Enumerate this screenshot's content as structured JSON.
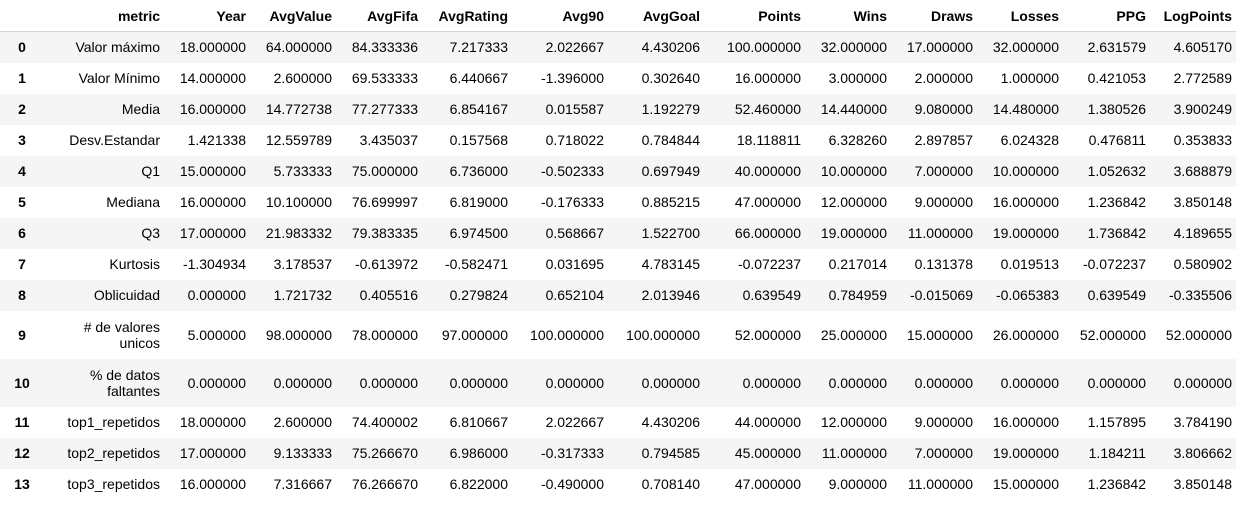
{
  "table": {
    "index_header": "",
    "columns": [
      "metric",
      "Year",
      "AvgValue",
      "AvgFifa",
      "AvgRating",
      "Avg90",
      "AvgGoal",
      "Points",
      "Wins",
      "Draws",
      "Losses",
      "PPG",
      "LogPoints"
    ],
    "rows": [
      {
        "index": "0",
        "metric": "Valor máximo",
        "values": [
          "18.000000",
          "64.000000",
          "84.333336",
          "7.217333",
          "2.022667",
          "4.430206",
          "100.000000",
          "32.000000",
          "17.000000",
          "32.000000",
          "2.631579",
          "4.605170"
        ]
      },
      {
        "index": "1",
        "metric": "Valor Mínimo",
        "values": [
          "14.000000",
          "2.600000",
          "69.533333",
          "6.440667",
          "-1.396000",
          "0.302640",
          "16.000000",
          "3.000000",
          "2.000000",
          "1.000000",
          "0.421053",
          "2.772589"
        ]
      },
      {
        "index": "2",
        "metric": "Media",
        "values": [
          "16.000000",
          "14.772738",
          "77.277333",
          "6.854167",
          "0.015587",
          "1.192279",
          "52.460000",
          "14.440000",
          "9.080000",
          "14.480000",
          "1.380526",
          "3.900249"
        ]
      },
      {
        "index": "3",
        "metric": "Desv.Estandar",
        "values": [
          "1.421338",
          "12.559789",
          "3.435037",
          "0.157568",
          "0.718022",
          "0.784844",
          "18.118811",
          "6.328260",
          "2.897857",
          "6.024328",
          "0.476811",
          "0.353833"
        ]
      },
      {
        "index": "4",
        "metric": "Q1",
        "values": [
          "15.000000",
          "5.733333",
          "75.000000",
          "6.736000",
          "-0.502333",
          "0.697949",
          "40.000000",
          "10.000000",
          "7.000000",
          "10.000000",
          "1.052632",
          "3.688879"
        ]
      },
      {
        "index": "5",
        "metric": "Mediana",
        "values": [
          "16.000000",
          "10.100000",
          "76.699997",
          "6.819000",
          "-0.176333",
          "0.885215",
          "47.000000",
          "12.000000",
          "9.000000",
          "16.000000",
          "1.236842",
          "3.850148"
        ]
      },
      {
        "index": "6",
        "metric": "Q3",
        "values": [
          "17.000000",
          "21.983332",
          "79.383335",
          "6.974500",
          "0.568667",
          "1.522700",
          "66.000000",
          "19.000000",
          "11.000000",
          "19.000000",
          "1.736842",
          "4.189655"
        ]
      },
      {
        "index": "7",
        "metric": "Kurtosis",
        "values": [
          "-1.304934",
          "3.178537",
          "-0.613972",
          "-0.582471",
          "0.031695",
          "4.783145",
          "-0.072237",
          "0.217014",
          "0.131378",
          "0.019513",
          "-0.072237",
          "0.580902"
        ]
      },
      {
        "index": "8",
        "metric": "Oblicuidad",
        "values": [
          "0.000000",
          "1.721732",
          "0.405516",
          "0.279824",
          "0.652104",
          "2.013946",
          "0.639549",
          "0.784959",
          "-0.015069",
          "-0.065383",
          "0.639549",
          "-0.335506"
        ]
      },
      {
        "index": "9",
        "metric": "# de valores unicos",
        "values": [
          "5.000000",
          "98.000000",
          "78.000000",
          "97.000000",
          "100.000000",
          "100.000000",
          "52.000000",
          "25.000000",
          "15.000000",
          "26.000000",
          "52.000000",
          "52.000000"
        ]
      },
      {
        "index": "10",
        "metric": "% de datos faltantes",
        "values": [
          "0.000000",
          "0.000000",
          "0.000000",
          "0.000000",
          "0.000000",
          "0.000000",
          "0.000000",
          "0.000000",
          "0.000000",
          "0.000000",
          "0.000000",
          "0.000000"
        ]
      },
      {
        "index": "11",
        "metric": "top1_repetidos",
        "values": [
          "18.000000",
          "2.600000",
          "74.400002",
          "6.810667",
          "2.022667",
          "4.430206",
          "44.000000",
          "12.000000",
          "9.000000",
          "16.000000",
          "1.157895",
          "3.784190"
        ]
      },
      {
        "index": "12",
        "metric": "top2_repetidos",
        "values": [
          "17.000000",
          "9.133333",
          "75.266670",
          "6.986000",
          "-0.317333",
          "0.794585",
          "45.000000",
          "11.000000",
          "7.000000",
          "19.000000",
          "1.184211",
          "3.806662"
        ]
      },
      {
        "index": "13",
        "metric": "top3_repetidos",
        "values": [
          "16.000000",
          "7.316667",
          "76.266670",
          "6.822000",
          "-0.490000",
          "0.708140",
          "47.000000",
          "9.000000",
          "11.000000",
          "15.000000",
          "1.236842",
          "3.850148"
        ]
      }
    ]
  }
}
